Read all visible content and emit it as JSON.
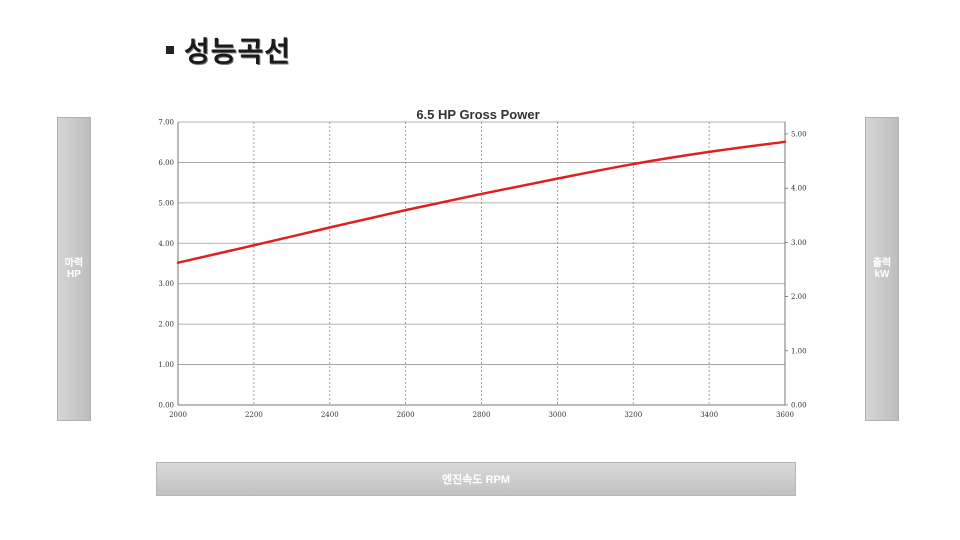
{
  "slide": {
    "title": "성능곡선",
    "left_axis_label_line1": "마력",
    "left_axis_label_line2": "HP",
    "right_axis_label_line1": "출력",
    "right_axis_label_line2": "kW",
    "bottom_axis_label": "엔진속도 RPM"
  },
  "chart_data": {
    "type": "line",
    "title": "6.5 HP Gross Power",
    "xlabel": "엔진속도 RPM",
    "ylabel": "마력 HP",
    "y2label": "출력 kW",
    "x": [
      2000,
      2200,
      2400,
      2600,
      2800,
      3000,
      3200,
      3400,
      3600
    ],
    "series": [
      {
        "values": [
          3.52,
          3.95,
          4.39,
          4.82,
          5.22,
          5.6,
          5.96,
          6.26,
          6.51
        ],
        "color": "#e02020"
      }
    ],
    "xlim": [
      2000,
      3600
    ],
    "ylim": [
      0,
      7
    ],
    "y2lim": [
      0,
      5.22
    ],
    "x_ticks": [
      "2000",
      "2200",
      "2400",
      "2600",
      "2800",
      "3000",
      "3200",
      "3400",
      "3600"
    ],
    "y_ticks": [
      "0.00",
      "1.00",
      "2.00",
      "3.00",
      "4.00",
      "5.00",
      "6.00",
      "7.00"
    ],
    "y2_ticks": [
      "0.00",
      "1.00",
      "2.00",
      "3.00",
      "4.00",
      "5.00"
    ],
    "grid": true,
    "colors": {
      "line": "#e02020",
      "grid_major": "#999999",
      "grid_minor": "#bbbbbb"
    }
  }
}
